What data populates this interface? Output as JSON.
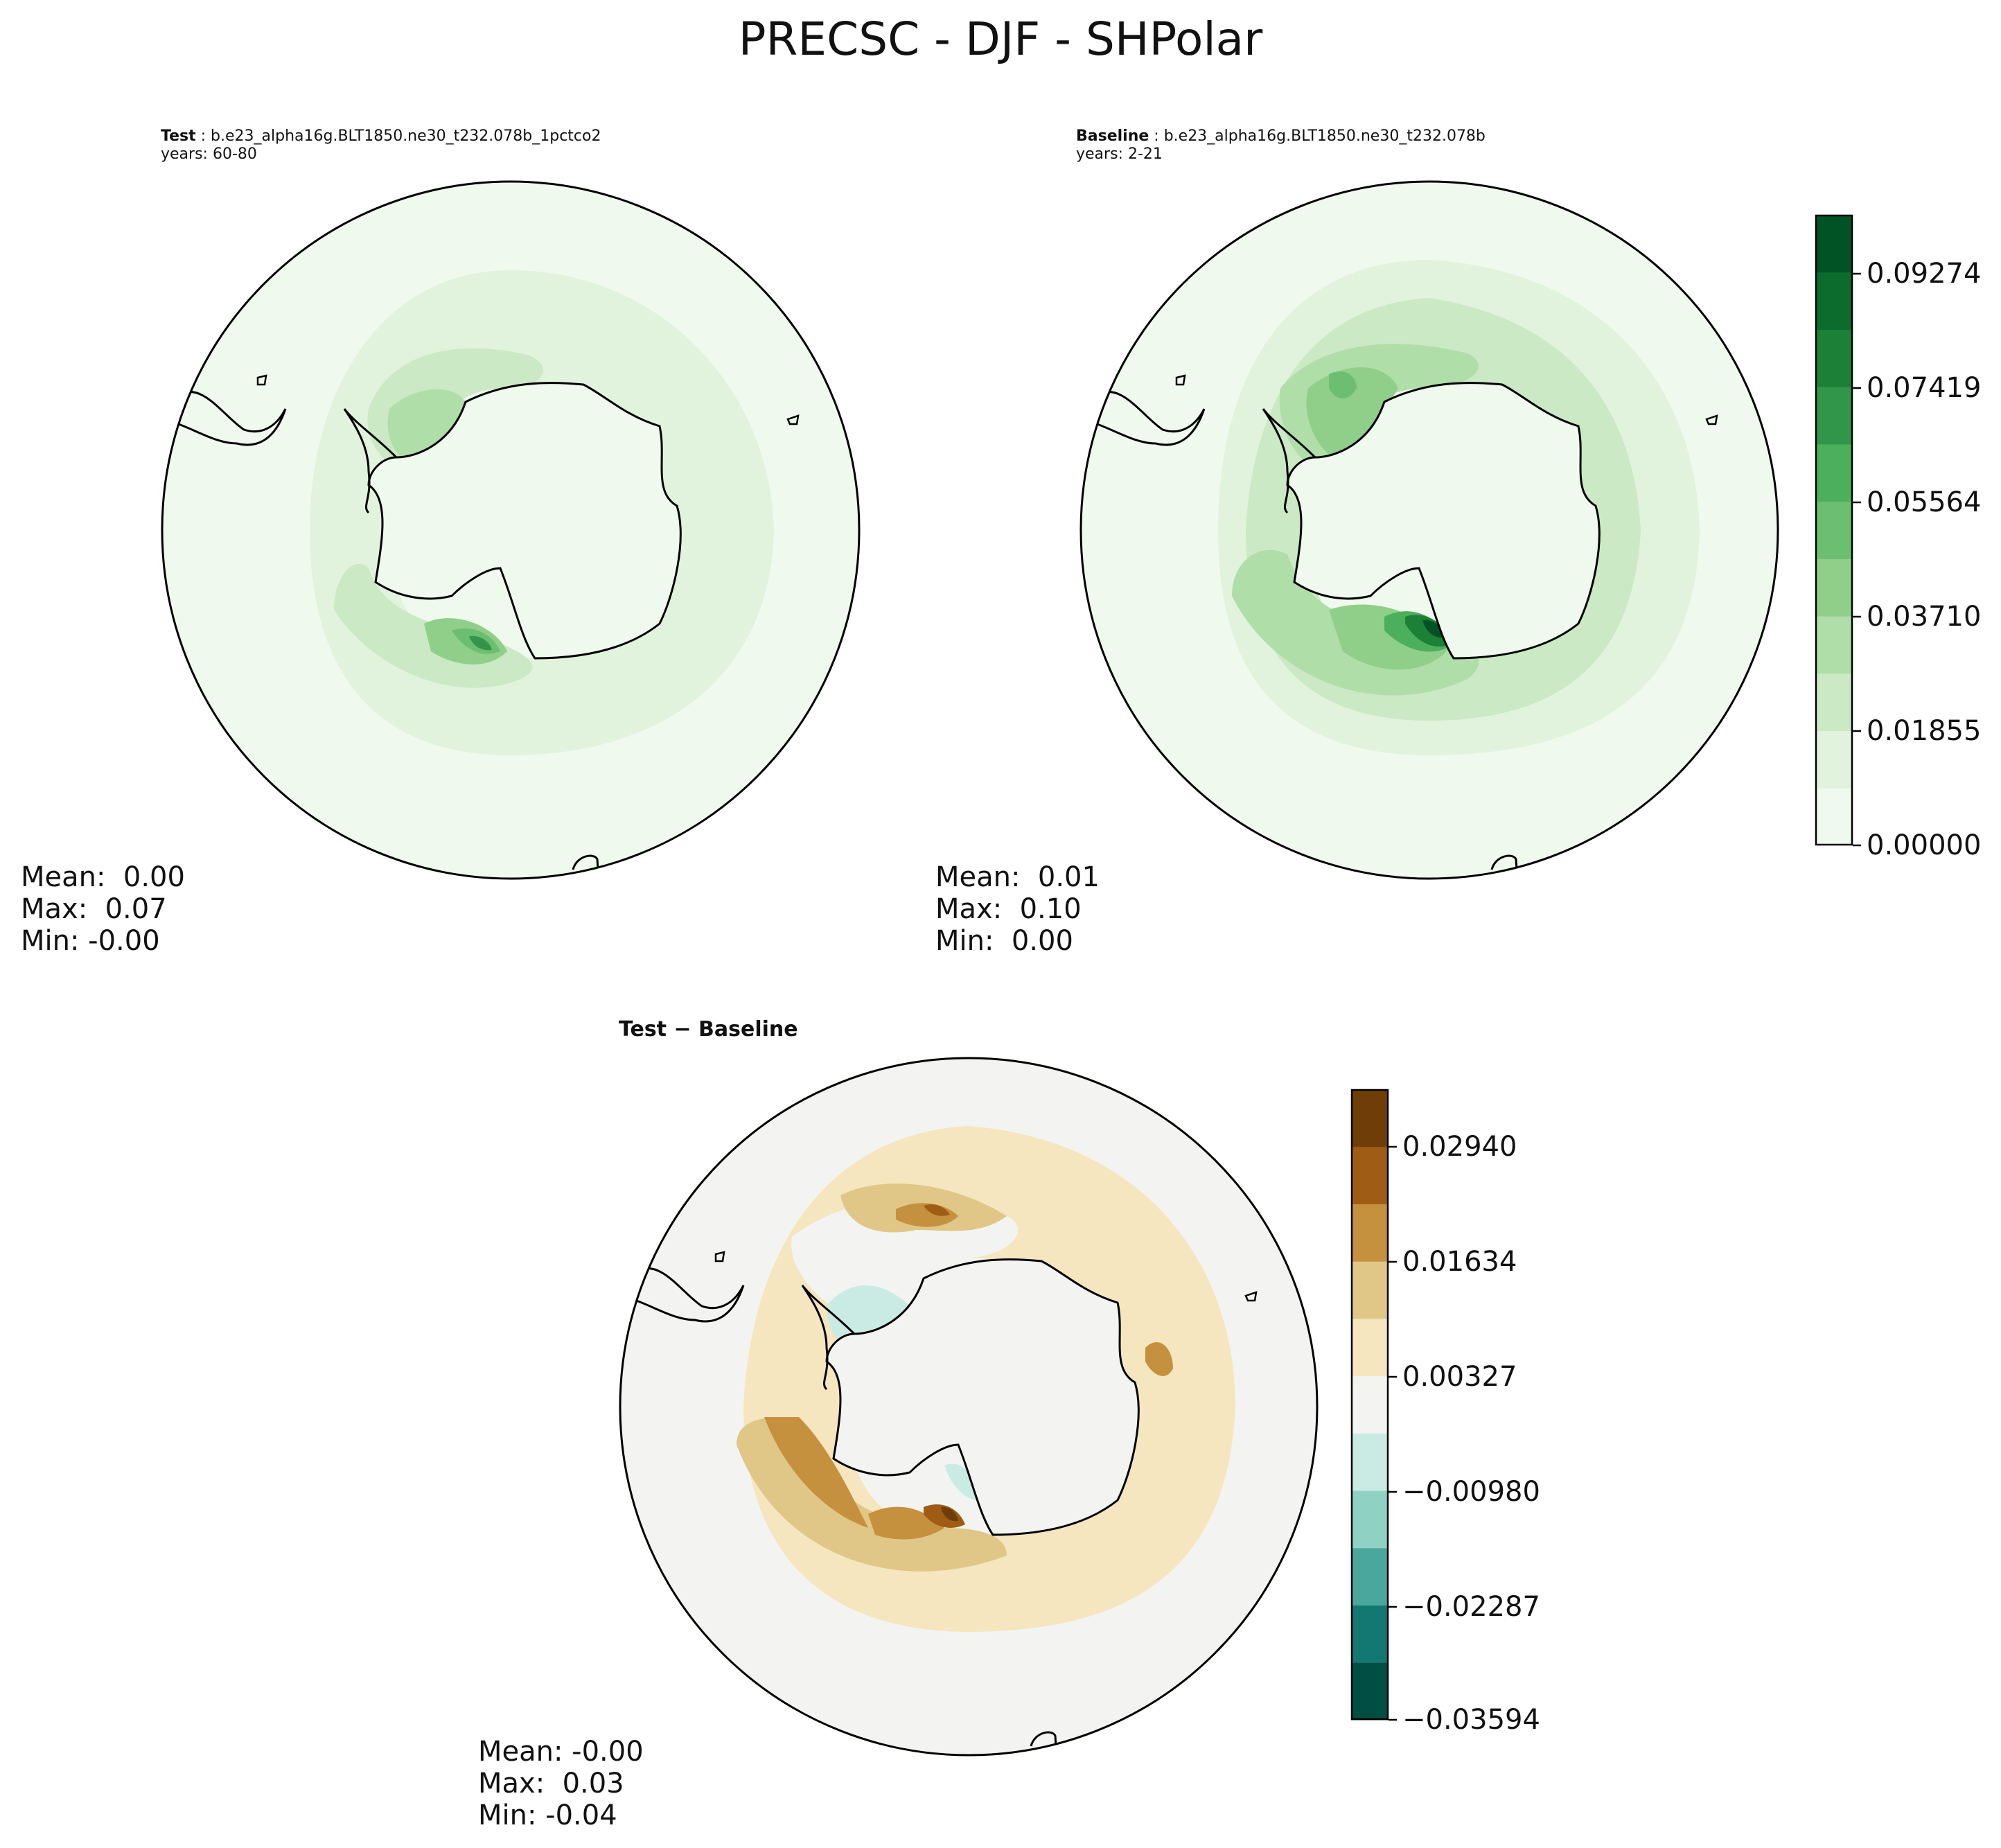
{
  "figure": {
    "title": "PRECSC - DJF - SHPolar"
  },
  "panels": {
    "test": {
      "label": "Test",
      "case": " : b.e23_alpha16g.BLT1850.ne30_t232.078b_1pctco2",
      "years": "years: 60-80",
      "stats": {
        "mean": "Mean:  0.00",
        "max": "Max:  0.07",
        "min": "Min: -0.00"
      }
    },
    "baseline": {
      "label": "Baseline",
      "case": " : b.e23_alpha16g.BLT1850.ne30_t232.078b",
      "years": "years: 2-21",
      "stats": {
        "mean": "Mean:  0.01",
        "max": "Max:  0.10",
        "min": "Min:  0.00"
      }
    },
    "diff": {
      "label": "Test − Baseline",
      "stats": {
        "mean": "Mean: -0.00",
        "max": "Max:  0.03",
        "min": "Min: -0.04"
      }
    }
  },
  "colorbars": {
    "main": {
      "ticks": [
        "0.09274",
        "0.07419",
        "0.05564",
        "0.03710",
        "0.01855",
        "0.00000"
      ],
      "colors": [
        "#f0f9ee",
        "#e2f3dd",
        "#cbe9c4",
        "#b0dea8",
        "#90cf89",
        "#6cbf71",
        "#4caf5c",
        "#32964a",
        "#1c8137",
        "#0b6c2d",
        "#015326"
      ]
    },
    "diff": {
      "ticks": [
        "0.02940",
        "0.01634",
        "0.00327",
        "−0.00980",
        "−0.02287",
        "−0.03594"
      ],
      "colors": [
        "#014e44",
        "#137872",
        "#4aa79b",
        "#8fd2c3",
        "#caebe3",
        "#f3f4f2",
        "#f5e6c0",
        "#e0c787",
        "#c5913f",
        "#9e5c15",
        "#6f3d08"
      ]
    }
  }
}
